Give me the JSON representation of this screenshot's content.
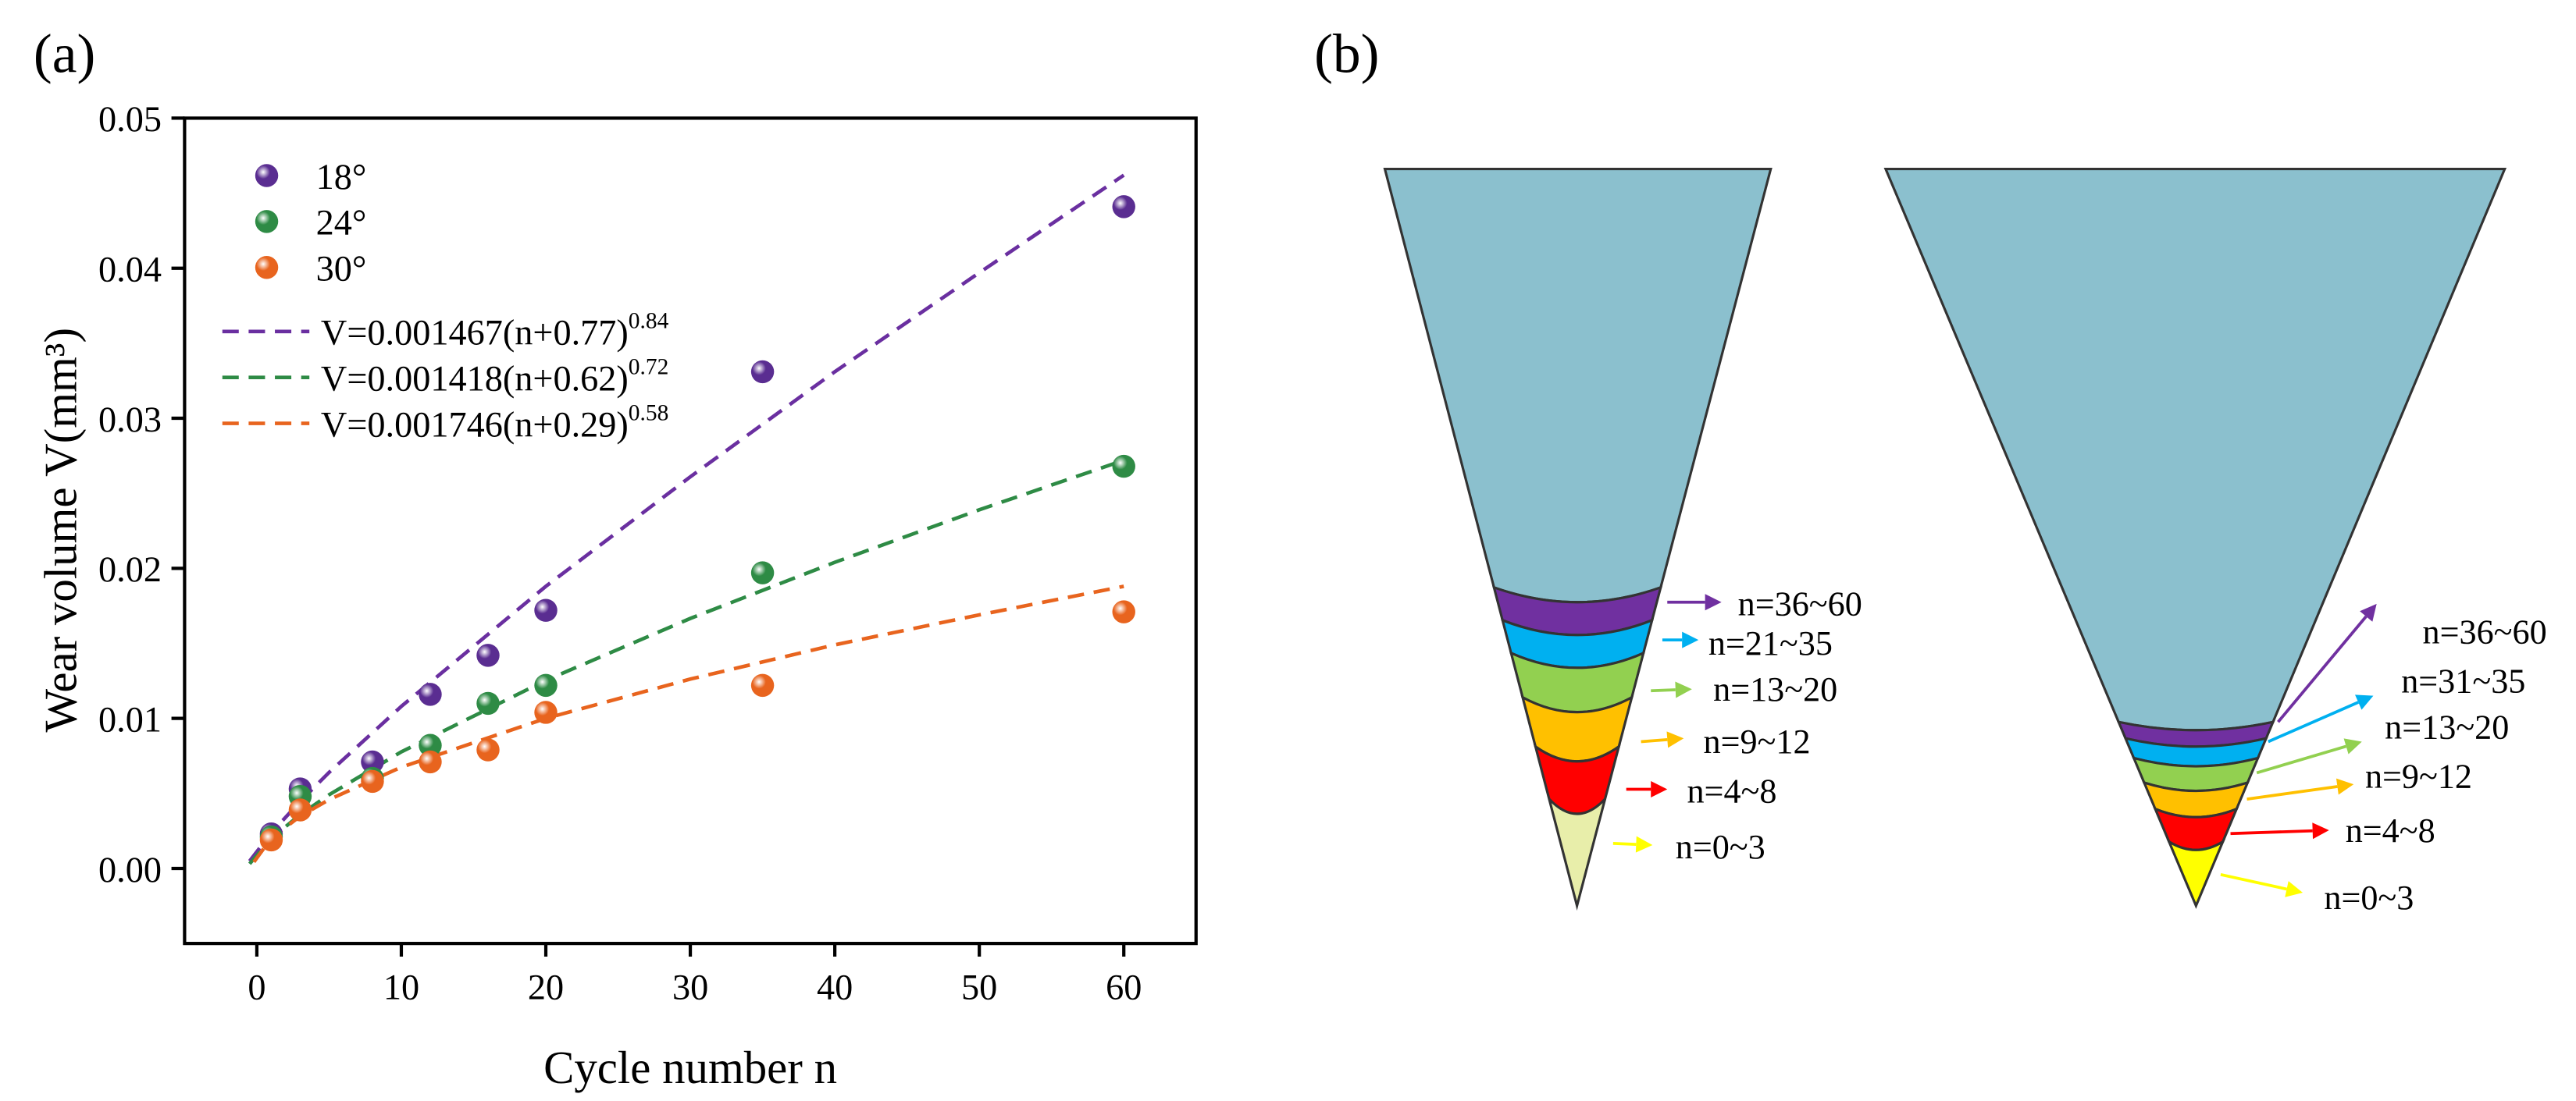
{
  "chart_data": {
    "type": "scatter",
    "panel_label": "(a)",
    "x_label": "Cycle number n",
    "y_label": "Wear volume V(mm³)",
    "x": [
      1,
      3,
      8,
      12,
      16,
      20,
      35,
      60
    ],
    "series": [
      {
        "name": "18°",
        "color": "#5a2d91",
        "values": [
          0.0023,
          0.0053,
          0.0071,
          0.0116,
          0.0142,
          0.0172,
          0.0331,
          0.0441
        ]
      },
      {
        "name": "24°",
        "color": "#2e8b45",
        "values": [
          0.0021,
          0.0048,
          0.006,
          0.0082,
          0.011,
          0.0122,
          0.0197,
          0.0268
        ]
      },
      {
        "name": "30°",
        "color": "#e8641e",
        "values": [
          0.0019,
          0.0039,
          0.0058,
          0.0071,
          0.0079,
          0.0104,
          0.0122,
          0.0171
        ]
      }
    ],
    "fits": [
      {
        "name": "V=0.001467(n+0.77)",
        "exponent": "0.84",
        "color": "#6a2fa0",
        "x": [
          -0.5,
          1,
          3,
          5,
          10,
          20,
          30,
          40,
          50,
          60
        ],
        "values": [
          0.00049,
          0.00237,
          0.00447,
          0.0064,
          0.0108,
          0.0188,
          0.0261,
          0.0331,
          0.0397,
          0.0462
        ]
      },
      {
        "name": "V=0.001418(n+0.62)",
        "exponent": "0.72",
        "color": "#2e8b45",
        "x": [
          -0.5,
          1,
          3,
          5,
          10,
          20,
          30,
          40,
          50,
          60
        ],
        "values": [
          0.00031,
          0.00201,
          0.00358,
          0.00491,
          0.00777,
          0.01253,
          0.01666,
          0.0204,
          0.0239,
          0.0272
        ]
      },
      {
        "name": "V=0.001746(n+0.29)",
        "exponent": "0.58",
        "color": "#e8641e",
        "x": [
          -0.2,
          1,
          3,
          5,
          10,
          20,
          30,
          40,
          50,
          60
        ],
        "values": [
          0.00043,
          0.00202,
          0.00348,
          0.00459,
          0.00675,
          0.01,
          0.01262,
          0.0149,
          0.0169,
          0.0188
        ]
      }
    ],
    "xlim": [
      -5,
      65
    ],
    "ylim": [
      -0.005,
      0.05
    ],
    "xticks": [
      0,
      10,
      20,
      30,
      40,
      50,
      60
    ],
    "yticks": [
      {
        "value": 0,
        "label": "0.00"
      },
      0.01,
      0.02,
      0.03,
      0.04,
      0.05
    ],
    "legend": "upper left"
  },
  "panel_b": {
    "label": "(b)",
    "cones": [
      {
        "labels": [
          "n=36~60",
          "n=21~35",
          "n=13~20",
          "n=9~12",
          "n=4~8",
          "n=0~3"
        ]
      },
      {
        "labels": [
          "n=36~60",
          "n=31~35",
          "n=13~20",
          "n=9~12",
          "n=4~8",
          "n=0~3"
        ]
      }
    ]
  }
}
